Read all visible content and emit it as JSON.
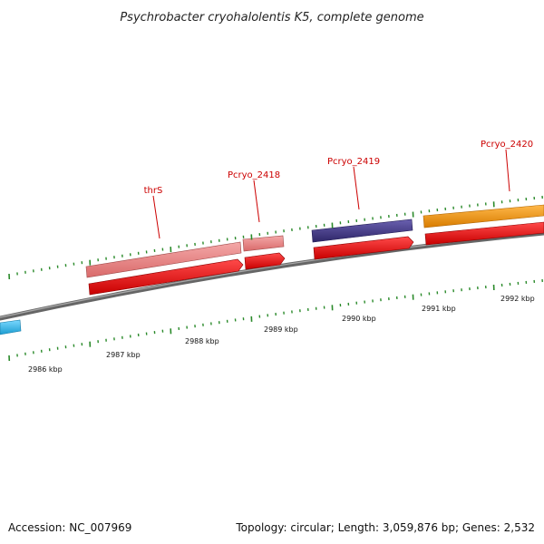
{
  "title": "Psychrobacter cryohalolentis K5, complete genome",
  "footer": {
    "accession": "Accession: NC_007969",
    "summary": "Topology: circular; Length: 3,059,876 bp; Genes: 2,532"
  },
  "colors": {
    "gene_pink": "#e88080",
    "gene_blue": "#4a3f8c",
    "gene_orange": "#f59a10",
    "gene_cyan": "#3cbce8",
    "cds_red": "#ee1111",
    "backbone": "#777777",
    "tick_green": "#2a8a2a",
    "label_red": "#cc0000"
  },
  "genes": [
    {
      "name": "thrS",
      "color": "gene_pink"
    },
    {
      "name": "Pcryo_2418",
      "color": "gene_pink"
    },
    {
      "name": "Pcryo_2419",
      "color": "gene_blue"
    },
    {
      "name": "Pcryo_2420",
      "color": "gene_orange"
    }
  ],
  "ticks": [
    "2986 kbp",
    "2987 kbp",
    "2988 kbp",
    "2989 kbp",
    "2990 kbp",
    "2991 kbp",
    "2992 kbp"
  ]
}
